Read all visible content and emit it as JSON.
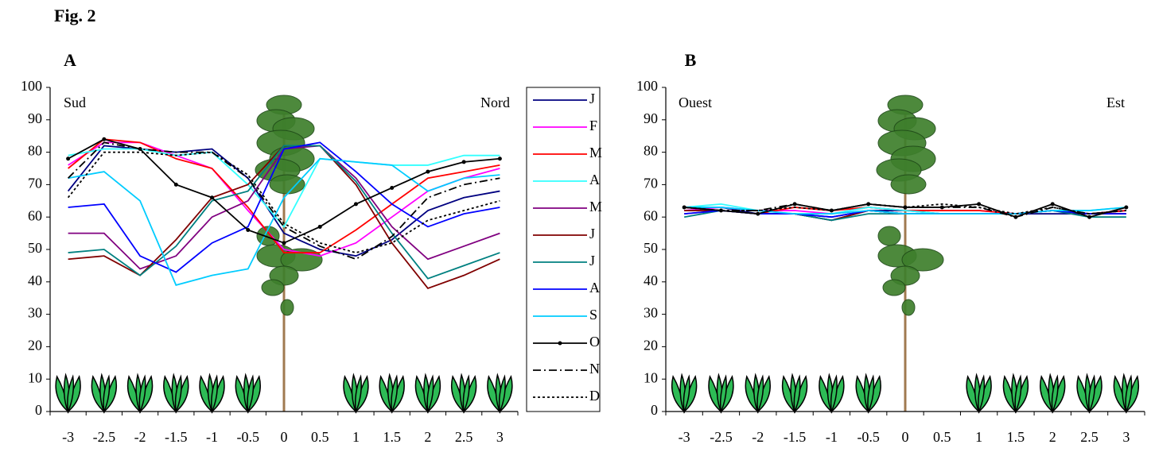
{
  "figure_title": "Fig. 2",
  "chart_data": [
    {
      "type": "line",
      "title": "A",
      "left_label": "Sud",
      "right_label": "Nord",
      "legend": "right",
      "x": [
        -3,
        -2.5,
        -2,
        -1.5,
        -1,
        -0.5,
        0,
        0.5,
        1,
        1.5,
        2,
        2.5,
        3
      ],
      "xlim": [
        -3.25,
        3.25
      ],
      "xticks": [
        -3,
        -2.5,
        -2,
        -1.5,
        -1,
        -0.5,
        0,
        0.5,
        1,
        1.5,
        2,
        2.5,
        3
      ],
      "ylim": [
        0,
        100
      ],
      "yticks": [
        0,
        10,
        20,
        30,
        40,
        50,
        60,
        70,
        80,
        90,
        100
      ],
      "series": [
        {
          "name": "J",
          "color": "#000080",
          "style": "solid",
          "values": [
            68,
            82,
            81,
            80,
            81,
            72,
            55,
            50,
            48,
            53,
            62,
            66,
            68
          ]
        },
        {
          "name": "F",
          "color": "#ff00ff",
          "style": "solid",
          "values": [
            76,
            83,
            83,
            79,
            75,
            62,
            50,
            48,
            52,
            60,
            68,
            72,
            75
          ]
        },
        {
          "name": "M",
          "color": "#ff0000",
          "style": "solid",
          "values": [
            75,
            84,
            83,
            78,
            75,
            63,
            49,
            49,
            56,
            64,
            72,
            74,
            76
          ]
        },
        {
          "name": "A",
          "color": "#33ffff",
          "style": "solid",
          "values": [
            79,
            81,
            81,
            79,
            80,
            70,
            57,
            78,
            77,
            76,
            76,
            79,
            79
          ]
        },
        {
          "name": "M",
          "color": "#800080",
          "style": "solid",
          "values": [
            55,
            55,
            44,
            48,
            60,
            65,
            81,
            82,
            72,
            57,
            47,
            51,
            55
          ]
        },
        {
          "name": "J",
          "color": "#800000",
          "style": "solid",
          "values": [
            47,
            48,
            42,
            53,
            66,
            70,
            82,
            82,
            70,
            52,
            38,
            42,
            47
          ]
        },
        {
          "name": "J",
          "color": "#008080",
          "style": "solid",
          "values": [
            49,
            50,
            42,
            51,
            65,
            68,
            82,
            82,
            71,
            55,
            41,
            45,
            49
          ]
        },
        {
          "name": "A",
          "color": "#0000ff",
          "style": "solid",
          "values": [
            63,
            64,
            48,
            43,
            52,
            57,
            81,
            83,
            74,
            64,
            57,
            61,
            63
          ]
        },
        {
          "name": "S",
          "color": "#00ccff",
          "style": "solid",
          "values": [
            72,
            74,
            65,
            39,
            42,
            44,
            66,
            78,
            77,
            76,
            68,
            72,
            73
          ]
        },
        {
          "name": "O",
          "color": "#000000",
          "style": "dot-marker",
          "values": [
            78,
            84,
            81,
            70,
            66,
            56,
            52,
            57,
            64,
            69,
            74,
            77,
            78
          ]
        },
        {
          "name": "N",
          "color": "#000000",
          "style": "dash-dot",
          "values": [
            72,
            83,
            81,
            80,
            80,
            72,
            57,
            51,
            47,
            54,
            66,
            70,
            72
          ]
        },
        {
          "name": "D",
          "color": "#000000",
          "style": "dotted",
          "values": [
            66,
            80,
            80,
            79,
            80,
            73,
            58,
            52,
            49,
            52,
            59,
            62,
            65
          ]
        }
      ]
    },
    {
      "type": "line",
      "title": "B",
      "left_label": "Ouest",
      "right_label": "Est",
      "x": [
        -3,
        -2.5,
        -2,
        -1.5,
        -1,
        -0.5,
        0,
        0.5,
        1,
        1.5,
        2,
        2.5,
        3
      ],
      "xlim": [
        -3.25,
        3.25
      ],
      "xticks": [
        -3,
        -2.5,
        -2,
        -1.5,
        -1,
        -0.5,
        0,
        0.5,
        1,
        1.5,
        2,
        2.5,
        3
      ],
      "ylim": [
        0,
        100
      ],
      "yticks": [
        0,
        10,
        20,
        30,
        40,
        50,
        60,
        70,
        80,
        90,
        100
      ],
      "series": [
        {
          "color": "#000080",
          "style": "solid",
          "values": [
            63,
            63,
            61,
            61,
            60,
            62,
            62,
            61,
            61,
            61,
            61,
            61,
            62
          ]
        },
        {
          "color": "#ff00ff",
          "style": "solid",
          "values": [
            62,
            63,
            62,
            62,
            61,
            63,
            62,
            62,
            62,
            61,
            62,
            61,
            62
          ]
        },
        {
          "color": "#ff0000",
          "style": "solid",
          "values": [
            63,
            62,
            61,
            63,
            62,
            63,
            62,
            62,
            62,
            61,
            62,
            61,
            62
          ]
        },
        {
          "color": "#33ffff",
          "style": "solid",
          "values": [
            63,
            64,
            62,
            61,
            61,
            63,
            62,
            61,
            61,
            61,
            62,
            62,
            63
          ]
        },
        {
          "color": "#800080",
          "style": "solid",
          "values": [
            61,
            62,
            61,
            61,
            59,
            62,
            61,
            61,
            61,
            61,
            62,
            61,
            61
          ]
        },
        {
          "color": "#800000",
          "style": "solid",
          "values": [
            62,
            62,
            61,
            61,
            59,
            62,
            61,
            61,
            61,
            61,
            62,
            61,
            61
          ]
        },
        {
          "color": "#008080",
          "style": "solid",
          "values": [
            60,
            62,
            61,
            61,
            59,
            61,
            61,
            61,
            61,
            61,
            62,
            60,
            60
          ]
        },
        {
          "color": "#0000ff",
          "style": "solid",
          "values": [
            61,
            62,
            61,
            61,
            60,
            62,
            61,
            61,
            61,
            61,
            62,
            61,
            61
          ]
        },
        {
          "color": "#00ccff",
          "style": "solid",
          "values": [
            63,
            63,
            62,
            61,
            61,
            62,
            61,
            61,
            61,
            61,
            62,
            62,
            63
          ]
        },
        {
          "color": "#000000",
          "style": "dot-marker",
          "values": [
            63,
            62,
            61,
            64,
            62,
            64,
            63,
            63,
            64,
            60,
            64,
            60,
            63
          ]
        },
        {
          "color": "#000000",
          "style": "dash-dot",
          "values": [
            63,
            62,
            62,
            64,
            62,
            64,
            63,
            63,
            63,
            60,
            63,
            61,
            62
          ]
        },
        {
          "color": "#000000",
          "style": "dotted",
          "values": [
            63,
            62,
            62,
            63,
            62,
            64,
            63,
            64,
            63,
            61,
            63,
            61,
            62
          ]
        }
      ]
    }
  ]
}
